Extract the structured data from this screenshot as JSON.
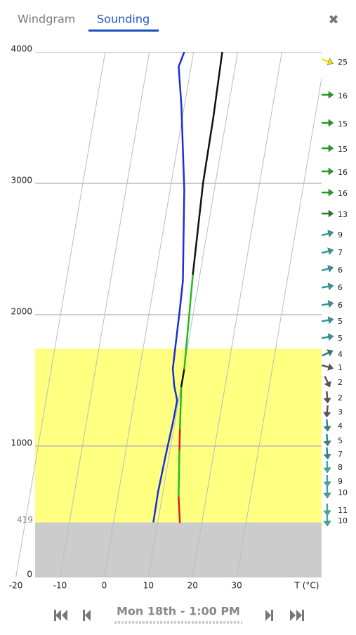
{
  "tabs": [
    {
      "label": "Windgram",
      "active": false
    },
    {
      "label": "Sounding",
      "active": true
    }
  ],
  "close": "✖",
  "chart_data": {
    "type": "line",
    "x_label": "T (°C)",
    "xlim": [
      -22,
      49.2
    ],
    "xticks": [
      -20,
      -10,
      0,
      10,
      20,
      30
    ],
    "ylim": [
      0,
      4000
    ],
    "yticks": [
      0,
      1000,
      2000,
      3000,
      4000
    ],
    "grid": true,
    "ground_altitude": 419,
    "ground_color": "#cccccc",
    "boundary_layer_top": 1740,
    "boundary_layer_color": "#ffff80",
    "series": [
      {
        "altitudes": [
          419,
          620,
          973,
          1134,
          1455,
          1588,
          2310,
          3000,
          3500,
          4000
        ],
        "values": [
          15,
          13.7,
          12.1,
          11.4,
          10.1,
          10.1,
          8.4,
          7.2,
          7,
          6.5
        ],
        "segment_colors": [
          "#d42020",
          "#22bb22",
          "#d42020",
          "#22bb22",
          "#111111",
          "#22bb22",
          "#111111",
          "#111111",
          "#111111"
        ]
      },
      {
        "altitudes": [
          419,
          652,
          920,
          1187,
          1348,
          1455,
          1588,
          1775,
          2043,
          2257,
          2952,
          3594,
          3888,
          4000
        ],
        "values": [
          9,
          8.9,
          9.2,
          9.6,
          9.7,
          8.5,
          7.5,
          7.2,
          6.8,
          6.4,
          3.2,
          -0.7,
          -2.8,
          -2.1
        ],
        "color": "#1b2fd9"
      }
    ],
    "winds": {
      "altitudes": [
        3930,
        3674,
        3460,
        3267,
        3091,
        2930,
        2770,
        2615,
        2481,
        2348,
        2214,
        2080,
        1957,
        1829,
        1706,
        1604,
        1492,
        1374,
        1267,
        1160,
        1048,
        947,
        845,
        738,
        652,
        519,
        439
      ],
      "speeds": [
        25,
        16,
        15,
        15,
        16,
        16,
        13,
        9,
        7,
        6,
        6,
        6,
        5,
        5,
        4,
        1,
        2,
        2,
        3,
        4,
        5,
        7,
        8,
        9,
        10,
        11,
        10
      ],
      "directions": [
        20,
        0,
        0,
        0,
        0,
        0,
        0,
        -15,
        -15,
        -15,
        -10,
        -10,
        -10,
        -10,
        -25,
        15,
        65,
        85,
        95,
        85,
        85,
        85,
        88,
        88,
        88,
        88,
        88
      ],
      "colors": [
        "#f5e400",
        "#1f9e1f",
        "#1f9e1f",
        "#1f9e1f",
        "#1f9e1f",
        "#1f9e1f",
        "#237a23",
        "#2a9a9a",
        "#2a9a9a",
        "#2a9a9a",
        "#2a9a9a",
        "#2a9a9a",
        "#2a9a9a",
        "#2a9a9a",
        "#277b7b",
        "#555555",
        "#555555",
        "#555555",
        "#555555",
        "#2a8a8a",
        "#2a8a8a",
        "#2a8a8a",
        "#35b0a0",
        "#35b0a0",
        "#35b0a0",
        "#35b0a0",
        "#35b0a0"
      ]
    }
  },
  "footer": {
    "date": "Mon 18th - 1:00 PM"
  }
}
